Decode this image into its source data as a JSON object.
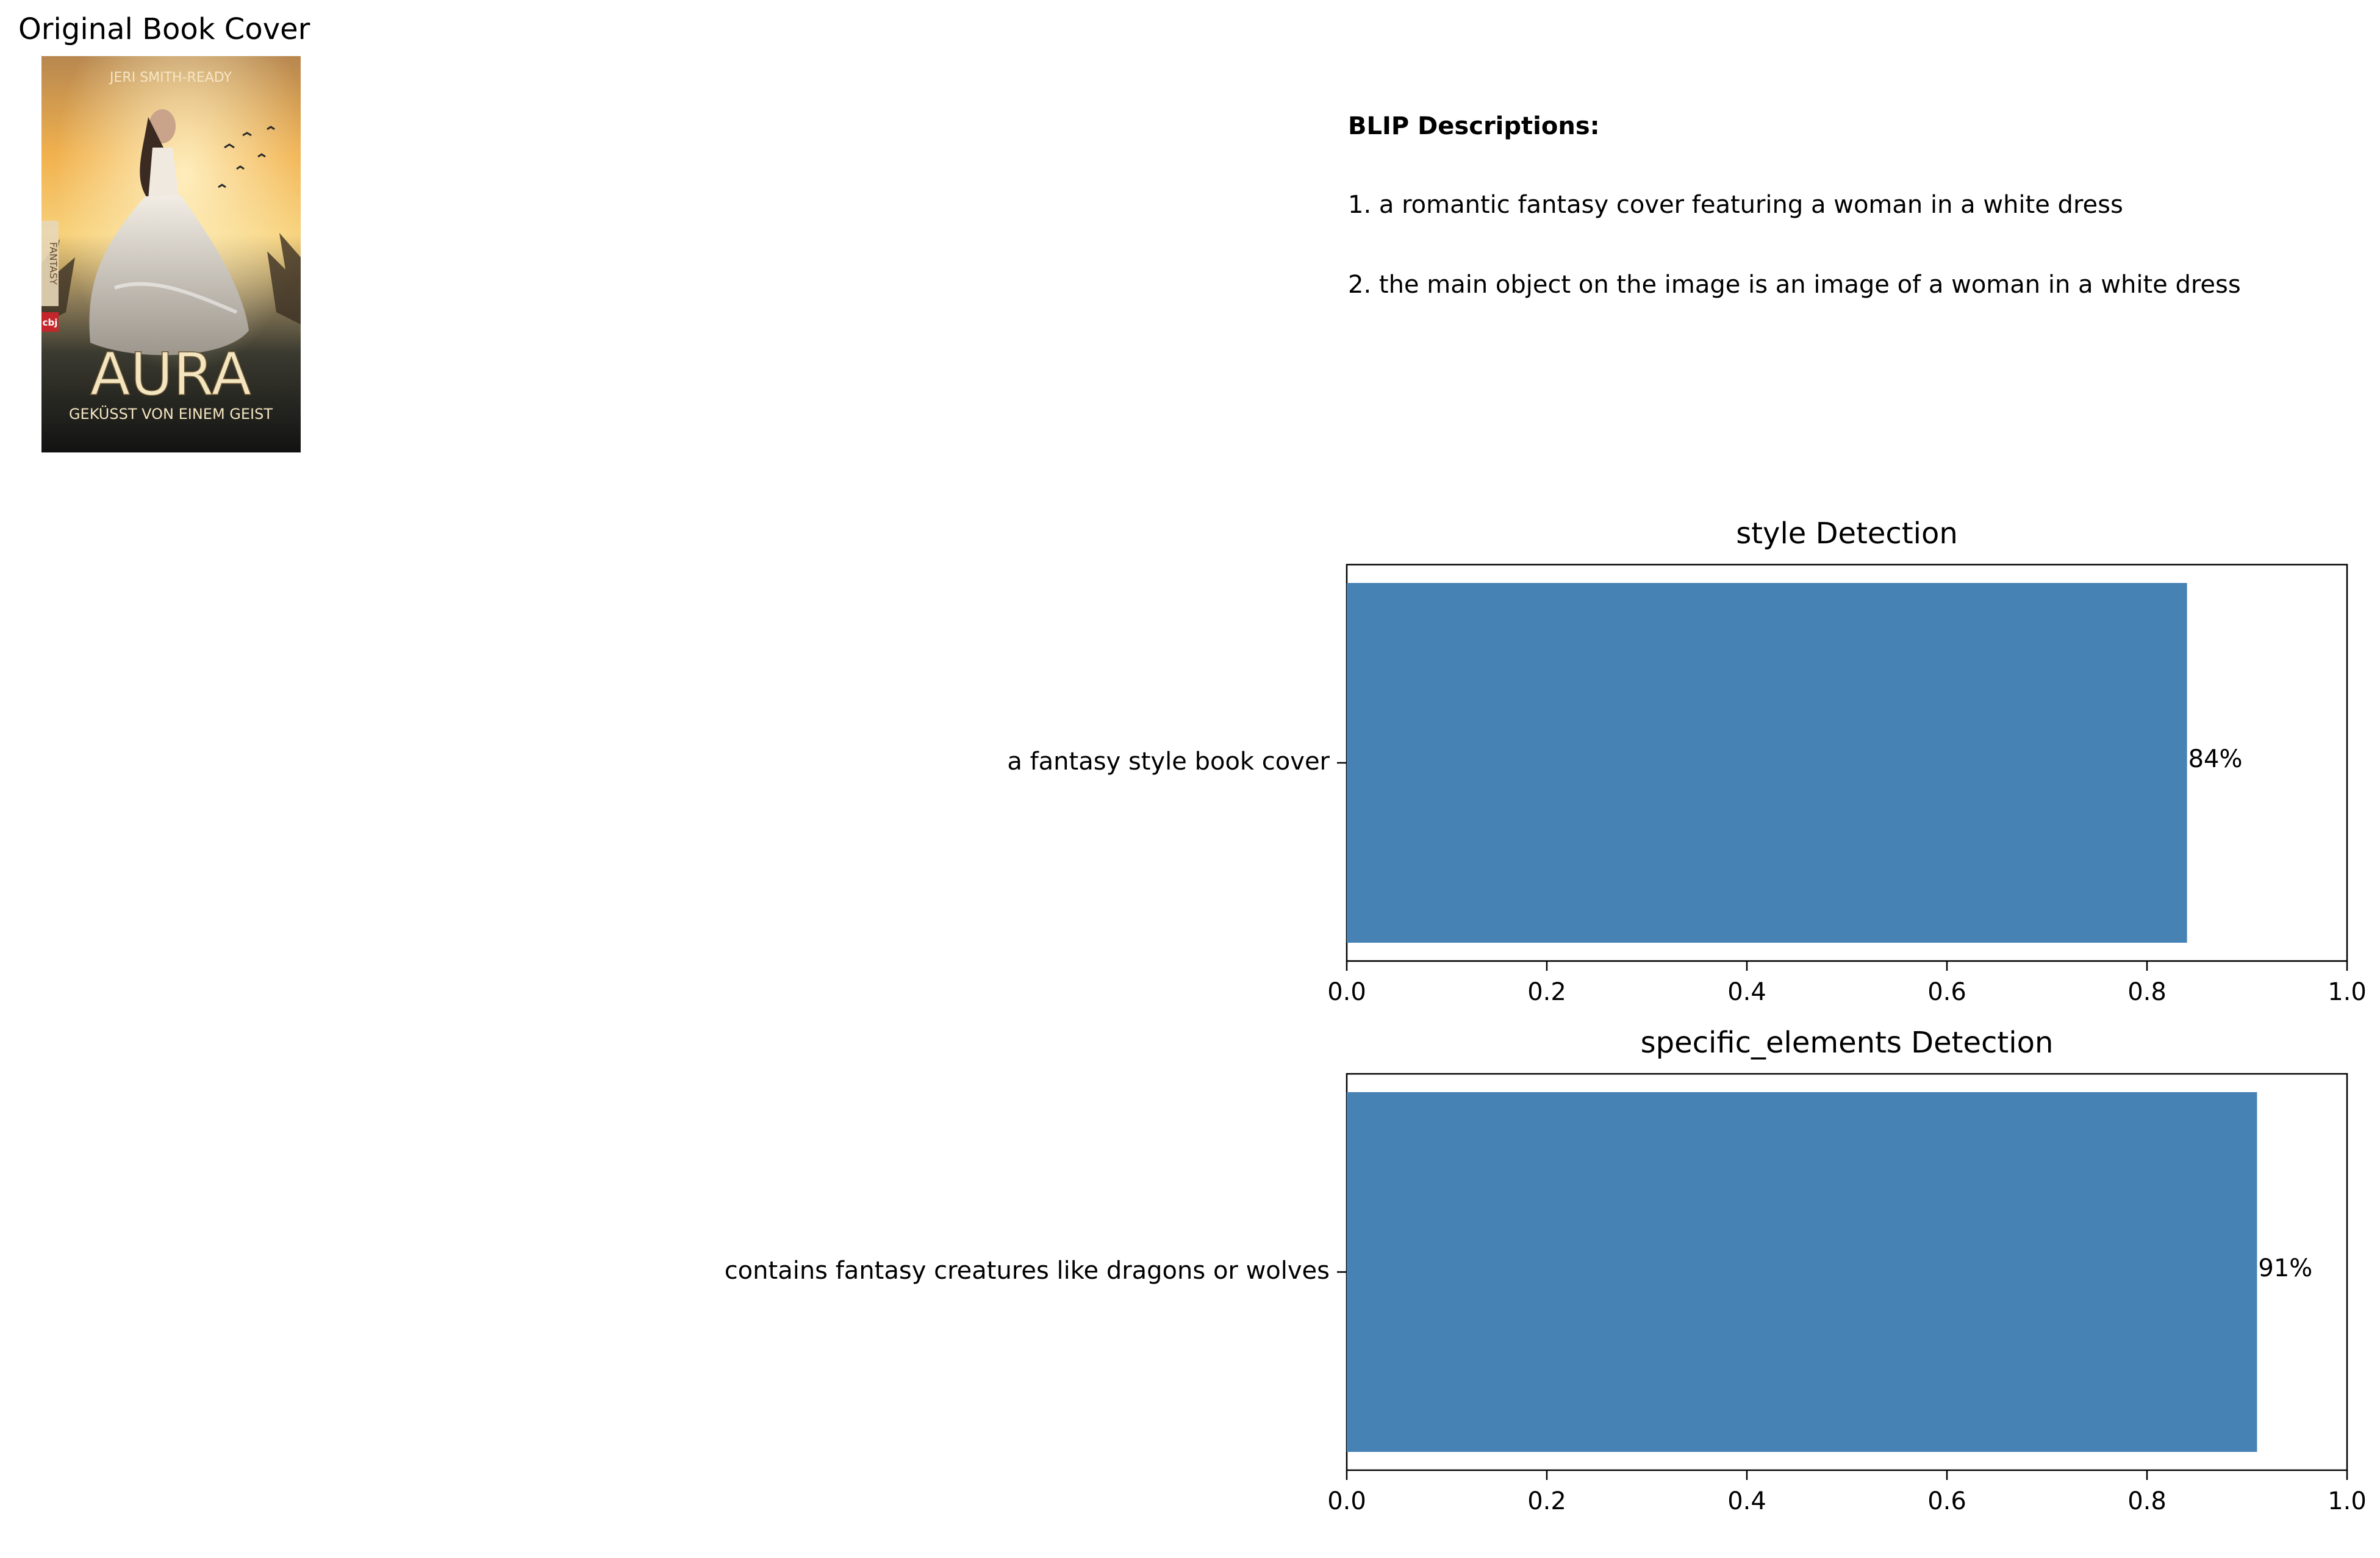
{
  "cover": {
    "title": "Original Book Cover",
    "author_text": "JERI SMITH-READY",
    "book_title": "AURA",
    "subtitle": "GEKÜSST VON EINEM GEIST",
    "imprint": "cbj",
    "genre_tag": "FANTASY"
  },
  "blip": {
    "heading": "BLIP Descriptions:",
    "items": [
      "1. a romantic fantasy cover featuring a woman in a white dress",
      "2. the main object on the image is an image of a woman in a white dress"
    ]
  },
  "chart_data": [
    {
      "type": "bar",
      "orientation": "horizontal",
      "title": "style Detection",
      "categories": [
        "a fantasy style book cover"
      ],
      "values": [
        0.84
      ],
      "value_labels": [
        "84%"
      ],
      "xlim": [
        0,
        1
      ],
      "xticks": [
        "0.0",
        "0.2",
        "0.4",
        "0.6",
        "0.8",
        "1.0"
      ],
      "bar_color": "#4682b4",
      "grid": false
    },
    {
      "type": "bar",
      "orientation": "horizontal",
      "title": "specific_elements Detection",
      "categories": [
        "contains fantasy creatures like dragons or wolves"
      ],
      "values": [
        0.91
      ],
      "value_labels": [
        "91%"
      ],
      "xlim": [
        0,
        1
      ],
      "xticks": [
        "0.0",
        "0.2",
        "0.4",
        "0.6",
        "0.8",
        "1.0"
      ],
      "bar_color": "#4682b4",
      "grid": false
    }
  ]
}
